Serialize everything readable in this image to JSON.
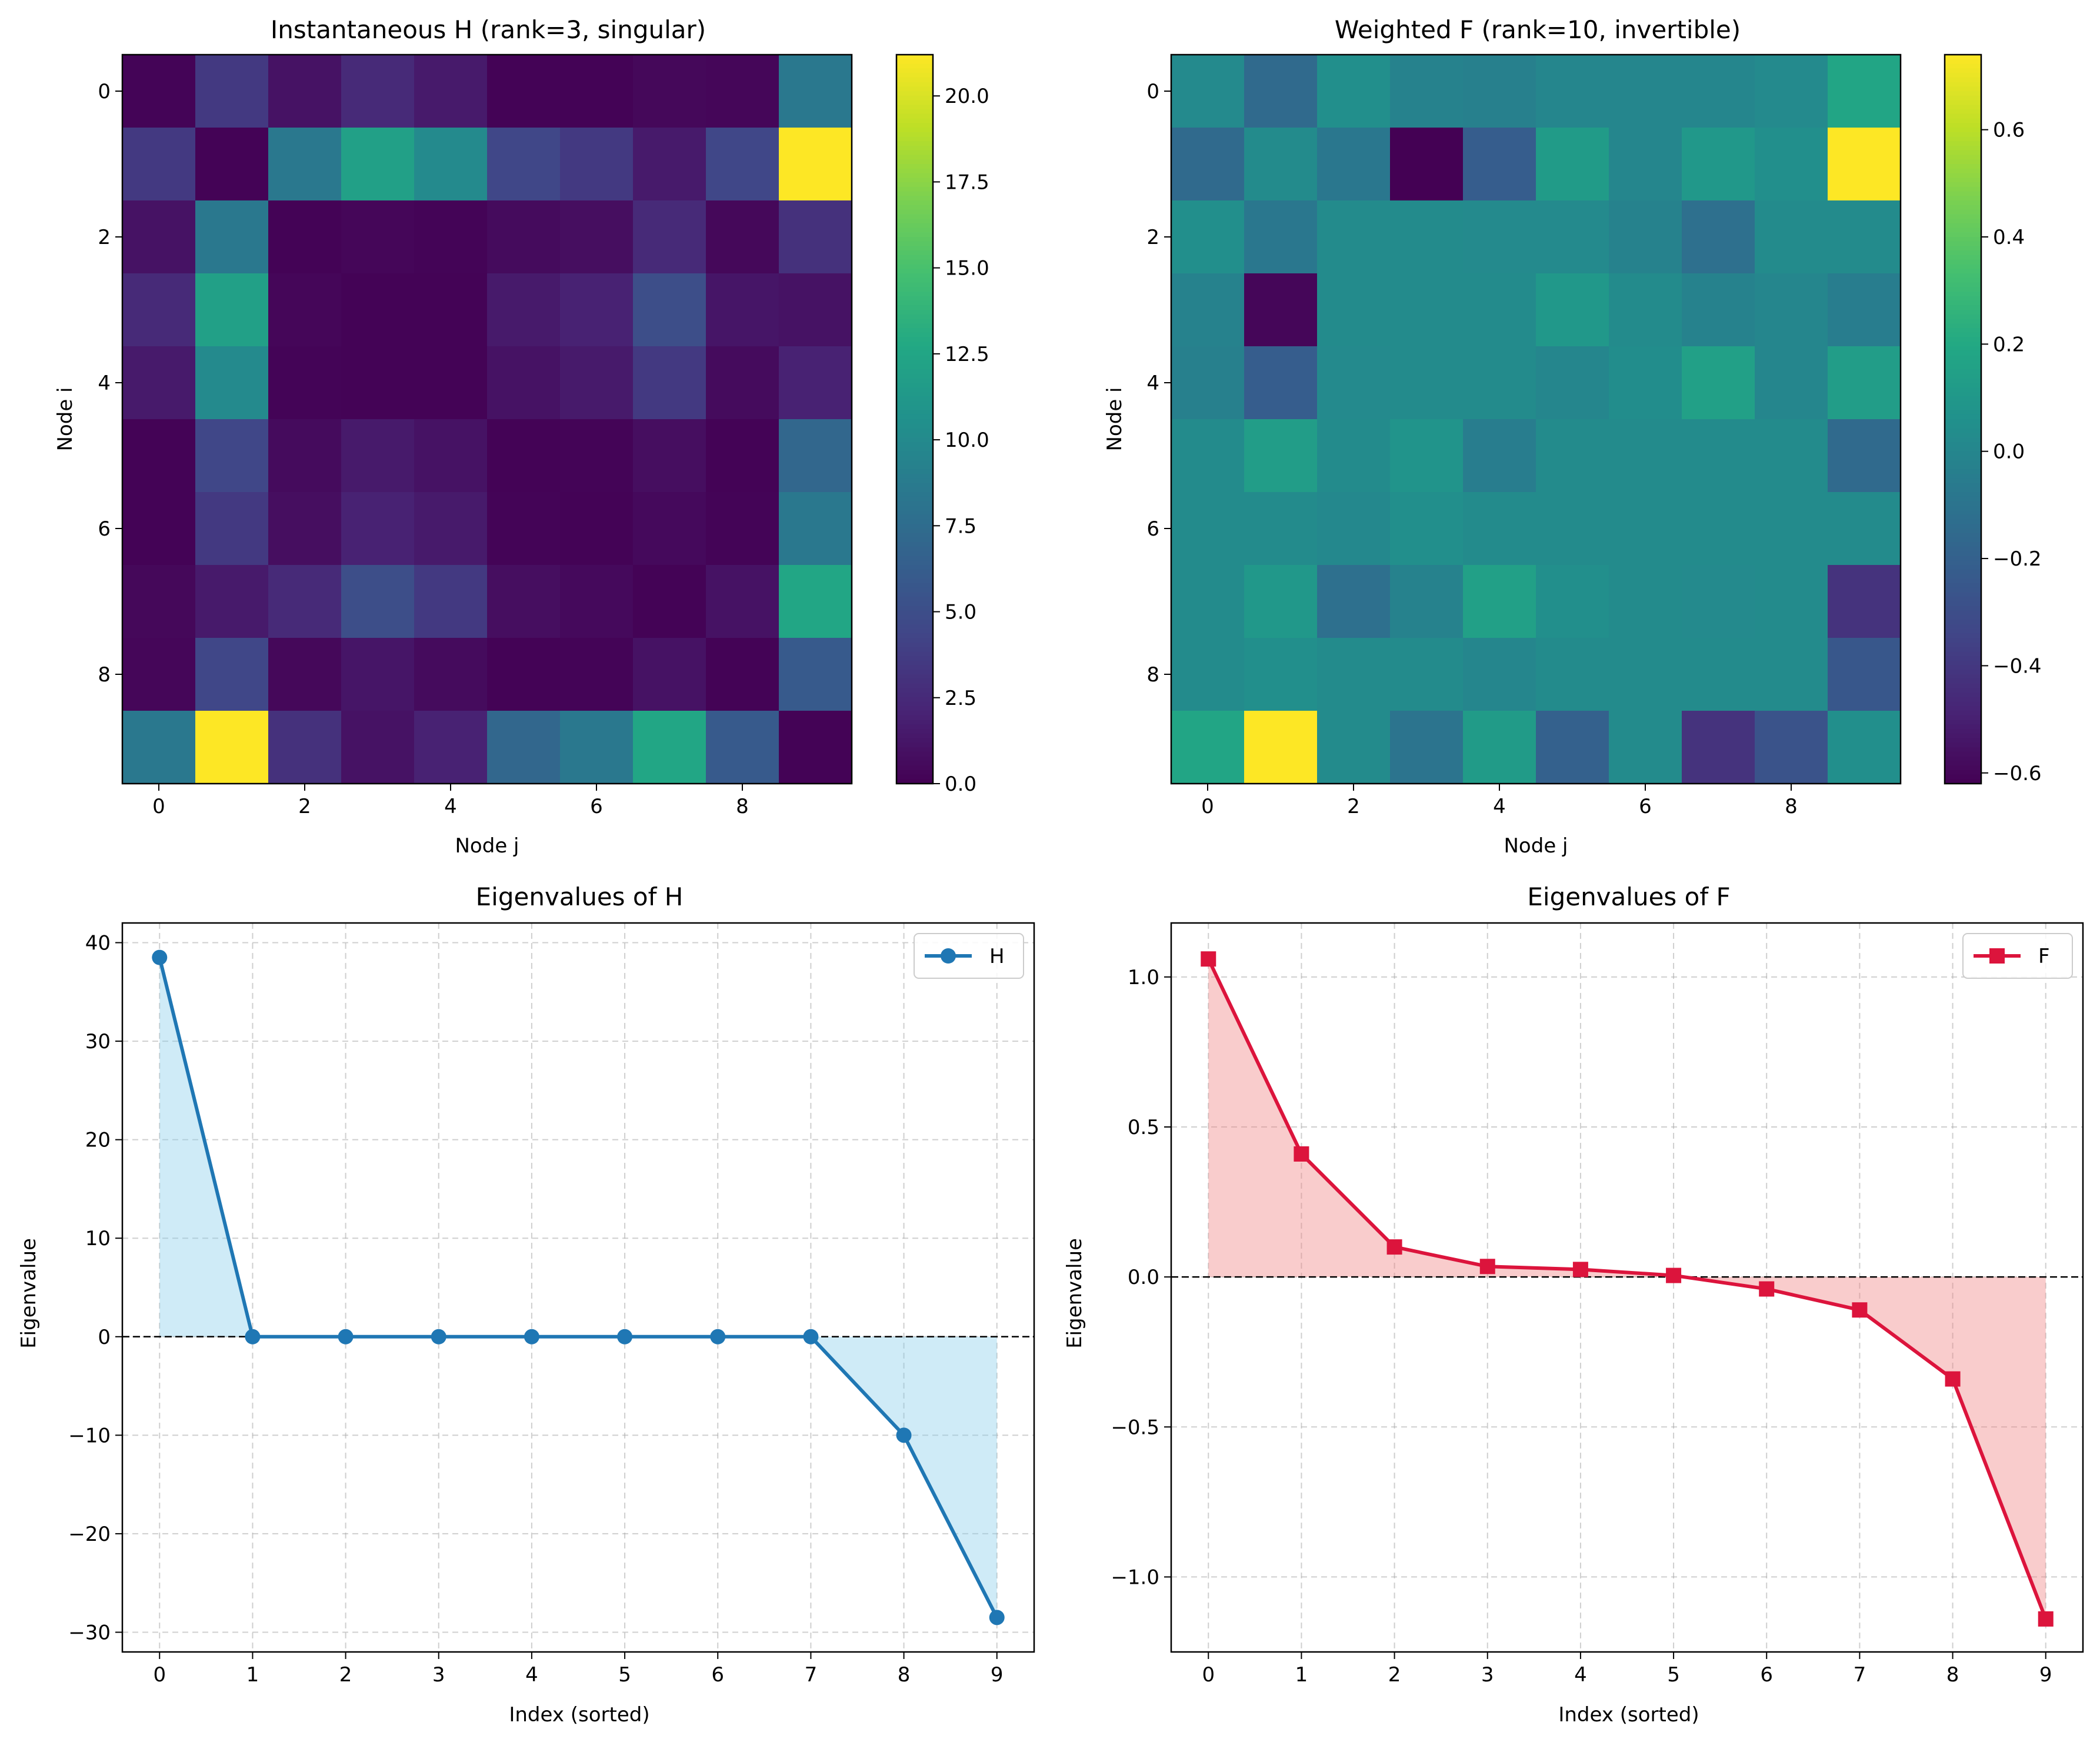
{
  "chart_data": [
    {
      "type": "heatmap",
      "title": "Instantaneous H (rank=3, singular)",
      "xlabel": "Node j",
      "ylabel": "Node i",
      "x_ticks": [
        0,
        2,
        4,
        6,
        8
      ],
      "y_ticks": [
        0,
        2,
        4,
        6,
        8
      ],
      "colormap": "viridis",
      "vmin": 0.0,
      "vmax": 21.2,
      "colorbar_ticks": [
        "0.0",
        "2.5",
        "5.0",
        "7.5",
        "10.0",
        "12.5",
        "15.0",
        "17.5",
        "20.0"
      ],
      "colorbar_values": [
        0,
        2.5,
        5,
        7.5,
        10,
        12.5,
        15,
        17.5,
        20
      ],
      "matrix": [
        [
          0.2,
          3.5,
          1.0,
          2.5,
          1.5,
          0.1,
          0.1,
          0.4,
          0.3,
          8.5
        ],
        [
          3.5,
          0.1,
          8.5,
          12.0,
          10.0,
          4.5,
          3.5,
          1.5,
          4.5,
          21.2
        ],
        [
          1.0,
          8.5,
          0.1,
          0.3,
          0.2,
          0.6,
          0.8,
          2.5,
          0.4,
          3.0
        ],
        [
          2.5,
          12.0,
          0.3,
          0.1,
          0.1,
          1.5,
          2.0,
          5.0,
          1.2,
          1.0
        ],
        [
          1.5,
          10.0,
          0.2,
          0.1,
          0.1,
          1.0,
          1.5,
          3.5,
          0.6,
          2.0
        ],
        [
          0.1,
          4.5,
          0.6,
          1.5,
          1.0,
          0.1,
          0.2,
          0.8,
          0.1,
          7.0
        ],
        [
          0.1,
          3.5,
          0.8,
          2.0,
          1.5,
          0.2,
          0.1,
          0.5,
          0.2,
          8.5
        ],
        [
          0.4,
          1.5,
          2.5,
          5.0,
          3.5,
          0.8,
          0.5,
          0.1,
          1.0,
          12.5
        ],
        [
          0.3,
          4.5,
          0.4,
          1.2,
          0.6,
          0.1,
          0.2,
          1.0,
          0.1,
          6.0
        ],
        [
          8.5,
          21.2,
          3.0,
          1.0,
          2.0,
          7.0,
          8.5,
          12.5,
          6.0,
          0.1
        ]
      ]
    },
    {
      "type": "heatmap",
      "title": "Weighted F (rank=10, invertible)",
      "xlabel": "Node j",
      "ylabel": "Node i",
      "x_ticks": [
        0,
        2,
        4,
        6,
        8
      ],
      "y_ticks": [
        0,
        2,
        4,
        6,
        8
      ],
      "colormap": "viridis",
      "vmin": -0.62,
      "vmax": 0.74,
      "colorbar_ticks": [
        "−0.6",
        "−0.4",
        "−0.2",
        "0.0",
        "0.2",
        "0.4",
        "0.6"
      ],
      "colorbar_values": [
        -0.6,
        -0.4,
        -0.2,
        0.0,
        0.2,
        0.4,
        0.6
      ],
      "matrix": [
        [
          0.02,
          -0.15,
          0.05,
          -0.02,
          -0.03,
          0.0,
          0.0,
          0.0,
          0.02,
          0.18
        ],
        [
          -0.15,
          0.03,
          -0.08,
          -0.62,
          -0.22,
          0.12,
          0.0,
          0.1,
          0.05,
          0.74
        ],
        [
          0.05,
          -0.08,
          0.03,
          0.03,
          0.02,
          0.02,
          -0.02,
          -0.12,
          0.03,
          0.03
        ],
        [
          -0.02,
          -0.6,
          0.03,
          0.03,
          0.03,
          0.1,
          0.03,
          -0.02,
          0.0,
          -0.05
        ],
        [
          -0.03,
          -0.22,
          0.02,
          0.03,
          0.03,
          0.0,
          0.04,
          0.15,
          0.0,
          0.13
        ],
        [
          0.03,
          0.13,
          0.03,
          0.08,
          -0.05,
          0.03,
          0.03,
          0.03,
          0.03,
          -0.15
        ],
        [
          0.03,
          0.03,
          0.01,
          0.05,
          0.03,
          0.03,
          0.03,
          0.03,
          0.03,
          0.03
        ],
        [
          0.03,
          0.1,
          -0.12,
          -0.02,
          0.15,
          0.05,
          0.03,
          0.02,
          0.03,
          -0.42
        ],
        [
          0.03,
          0.05,
          0.03,
          0.03,
          0.0,
          0.03,
          0.03,
          0.03,
          0.03,
          -0.25
        ],
        [
          0.18,
          0.74,
          0.03,
          -0.1,
          0.12,
          -0.2,
          0.03,
          -0.42,
          -0.27,
          0.05
        ]
      ]
    },
    {
      "type": "line",
      "title": "Eigenvalues of H",
      "xlabel": "Index (sorted)",
      "ylabel": "Eigenvalue",
      "x": [
        0,
        1,
        2,
        3,
        4,
        5,
        6,
        7,
        8,
        9
      ],
      "series": [
        {
          "name": "H",
          "values": [
            38.5,
            0.0,
            0.0,
            0.0,
            0.0,
            0.0,
            0.0,
            0.0,
            -10.0,
            -28.5
          ]
        }
      ],
      "line_color": "#1f77b4",
      "fill_color": "#87ceeb",
      "marker": "circle",
      "xlim": [
        -0.4,
        9.4
      ],
      "ylim": [
        -32,
        42
      ],
      "x_ticks": [
        0,
        1,
        2,
        3,
        4,
        5,
        6,
        7,
        8,
        9
      ],
      "y_ticks": [
        40,
        30,
        20,
        10,
        0,
        -10,
        -20,
        -30
      ],
      "y_tick_labels": [
        "40",
        "30",
        "20",
        "10",
        "0",
        "−10",
        "−20",
        "−30"
      ],
      "grid": true,
      "legend": "top-right"
    },
    {
      "type": "line",
      "title": "Eigenvalues of F",
      "xlabel": "Index (sorted)",
      "ylabel": "Eigenvalue",
      "x": [
        0,
        1,
        2,
        3,
        4,
        5,
        6,
        7,
        8,
        9
      ],
      "series": [
        {
          "name": "F",
          "values": [
            1.06,
            0.41,
            0.1,
            0.035,
            0.025,
            0.005,
            -0.04,
            -0.11,
            -0.34,
            -1.14
          ]
        }
      ],
      "line_color": "#dc143c",
      "fill_color": "#f08080",
      "marker": "square",
      "xlim": [
        -0.4,
        9.4
      ],
      "ylim": [
        -1.25,
        1.18
      ],
      "x_ticks": [
        0,
        1,
        2,
        3,
        4,
        5,
        6,
        7,
        8,
        9
      ],
      "y_ticks": [
        1.0,
        0.5,
        0.0,
        -0.5,
        -1.0
      ],
      "y_tick_labels": [
        "1.0",
        "0.5",
        "0.0",
        "−0.5",
        "−1.0"
      ],
      "grid": true,
      "legend": "top-right"
    }
  ]
}
